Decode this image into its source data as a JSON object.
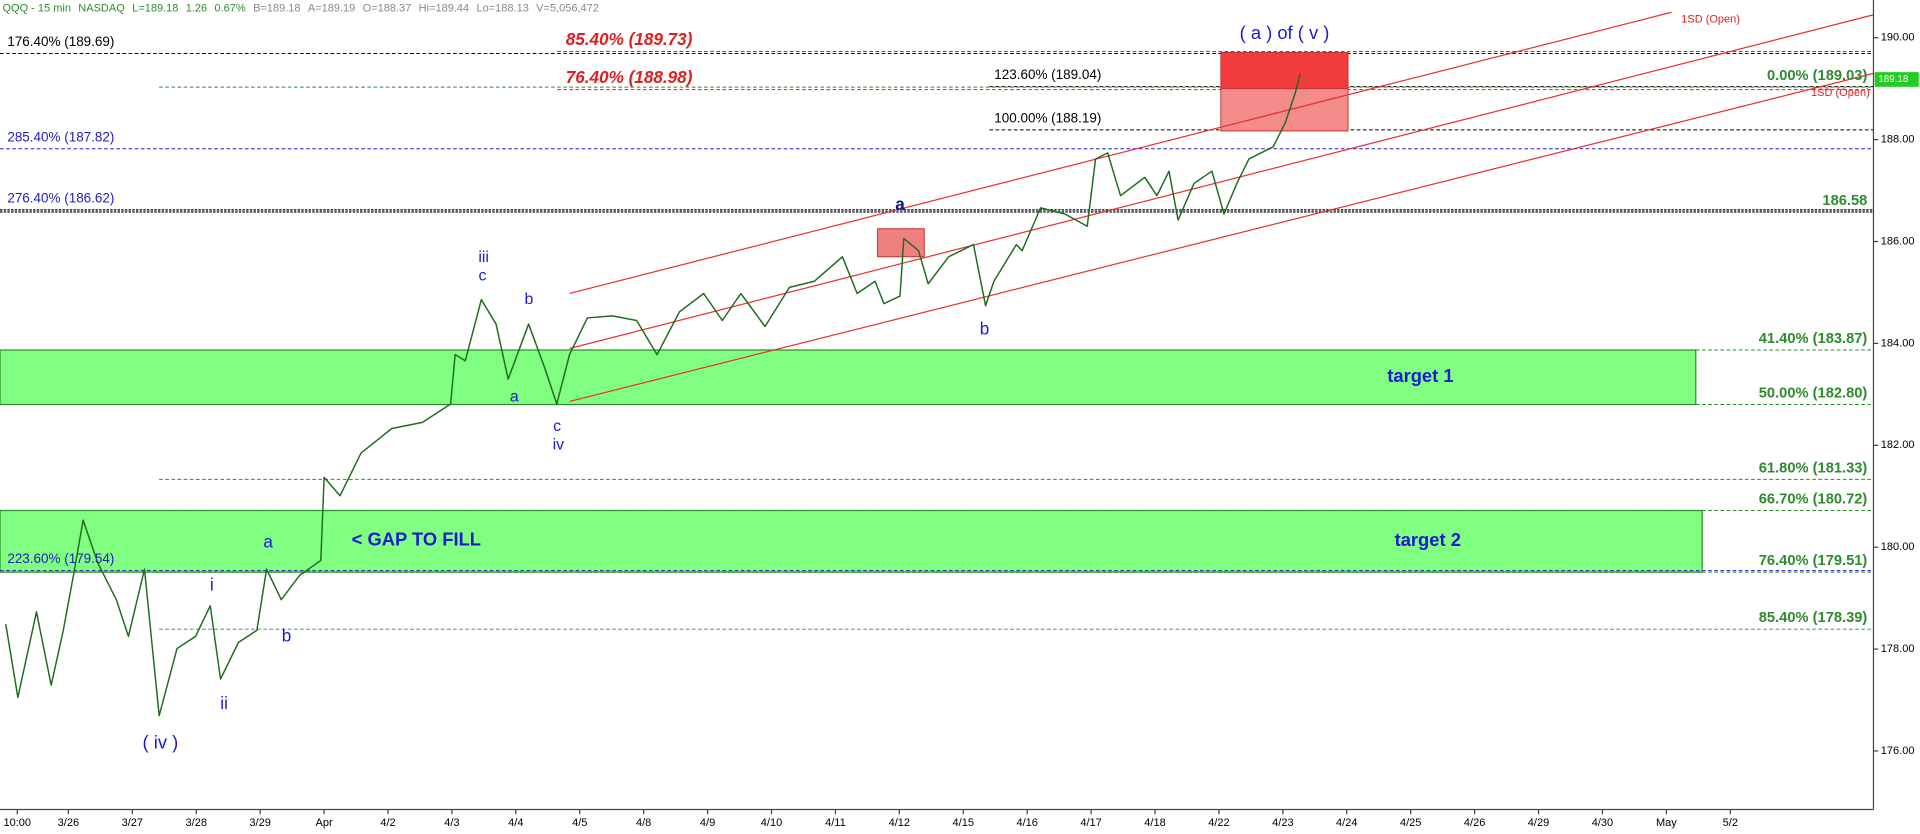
{
  "chart_data": {
    "type": "line",
    "header": [
      "QQQ - 15 min",
      "NASDAQ",
      "L=189.18",
      "1.26",
      "0.67%",
      "B=189.18",
      "A=189.19",
      "O=188.37",
      "Hi=189.44",
      "Lo=188.13",
      "V=5,056,472"
    ],
    "color": "#1f6b1f",
    "x": [
      0.02,
      0.21,
      0.5,
      0.73,
      0.92,
      1.08,
      1.23,
      1.46,
      1.75,
      1.94,
      2.19,
      2.42,
      2.7,
      2.99,
      3.22,
      3.38,
      3.66,
      3.95,
      4.1,
      4.33,
      4.62,
      4.95,
      5.0,
      5.25,
      5.58,
      6.06,
      6.54,
      6.98,
      7.05,
      7.21,
      7.46,
      7.69,
      7.88,
      8.2,
      8.45,
      8.64,
      8.84,
      9.12,
      9.51,
      9.89,
      10.21,
      10.56,
      10.94,
      11.23,
      11.52,
      11.9,
      12.28,
      12.67,
      13.11,
      13.34,
      13.62,
      13.76,
      14.01,
      14.07,
      14.3,
      14.45,
      14.77,
      15.16,
      15.35,
      15.48,
      15.83,
      15.92,
      16.21,
      16.59,
      16.94,
      17.07,
      17.26,
      17.46,
      17.84,
      18.03,
      18.22,
      18.36,
      18.61,
      18.89,
      19.08,
      19.28,
      19.47,
      19.85,
      20.04,
      20.2,
      20.27
    ],
    "values": [
      178.49,
      177.05,
      178.73,
      177.29,
      178.37,
      179.45,
      180.53,
      179.69,
      178.97,
      178.25,
      179.57,
      176.69,
      178.01,
      178.25,
      178.85,
      177.41,
      178.13,
      178.37,
      179.57,
      178.97,
      179.45,
      179.74,
      181.37,
      181.01,
      181.85,
      182.33,
      182.45,
      182.81,
      183.78,
      183.66,
      184.86,
      184.38,
      183.3,
      184.38,
      183.53,
      182.81,
      183.78,
      184.5,
      184.54,
      184.45,
      183.78,
      184.62,
      184.98,
      184.45,
      184.98,
      184.33,
      185.1,
      185.22,
      185.7,
      184.98,
      185.22,
      184.78,
      184.93,
      186.06,
      185.82,
      185.17,
      185.7,
      185.94,
      184.74,
      185.22,
      185.94,
      185.82,
      186.66,
      186.54,
      186.3,
      187.62,
      187.74,
      186.9,
      187.26,
      186.9,
      187.38,
      186.42,
      187.14,
      187.38,
      186.54,
      187.14,
      187.62,
      187.86,
      188.34,
      188.94,
      189.3
    ],
    "xlim": [
      -0.07,
      29.24
    ],
    "ylim": [
      174.85,
      190.74
    ],
    "xticks": [
      {
        "value": 0.2,
        "label": "10:00"
      },
      {
        "value": 1,
        "label": "3/26"
      },
      {
        "value": 2,
        "label": "3/27"
      },
      {
        "value": 3,
        "label": "3/28"
      },
      {
        "value": 4,
        "label": "3/29"
      },
      {
        "value": 5,
        "label": "Apr"
      },
      {
        "value": 6,
        "label": "4/2"
      },
      {
        "value": 7,
        "label": "4/3"
      },
      {
        "value": 8,
        "label": "4/4"
      },
      {
        "value": 9,
        "label": "4/5"
      },
      {
        "value": 10,
        "label": "4/8"
      },
      {
        "value": 11,
        "label": "4/9"
      },
      {
        "value": 12,
        "label": "4/10"
      },
      {
        "value": 13,
        "label": "4/11"
      },
      {
        "value": 14,
        "label": "4/12"
      },
      {
        "value": 15,
        "label": "4/15"
      },
      {
        "value": 16,
        "label": "4/16"
      },
      {
        "value": 17,
        "label": "4/17"
      },
      {
        "value": 18,
        "label": "4/18"
      },
      {
        "value": 19,
        "label": "4/22"
      },
      {
        "value": 20,
        "label": "4/23"
      },
      {
        "value": 21,
        "label": "4/24"
      },
      {
        "value": 22,
        "label": "4/25"
      },
      {
        "value": 23,
        "label": "4/26"
      },
      {
        "value": 24,
        "label": "4/29"
      },
      {
        "value": 25,
        "label": "4/30"
      },
      {
        "value": 26,
        "label": "May"
      },
      {
        "value": 27,
        "label": "5/2"
      }
    ],
    "yticks": [
      {
        "value": 176,
        "label": "176.00"
      },
      {
        "value": 178,
        "label": "178.00"
      },
      {
        "value": 180,
        "label": "180.00"
      },
      {
        "value": 182,
        "label": "182.00"
      },
      {
        "value": 184,
        "label": "184.00"
      },
      {
        "value": 186,
        "label": "186.00"
      },
      {
        "value": 188,
        "label": "188.00"
      },
      {
        "value": 190,
        "label": "190.00"
      }
    ],
    "last_price": 189.18,
    "last_price_color": "#22cc22",
    "levels": [
      {
        "label": "176.40% (189.69)",
        "value": 189.69,
        "color": "#000000"
      },
      {
        "label": "85.40% (189.73)",
        "value": 189.73,
        "color": "#e02020"
      },
      {
        "label": "76.40% (188.98)",
        "value": 188.98,
        "color": "#e02020"
      },
      {
        "label": "123.60% (189.04)",
        "value": 189.04,
        "color": "#000000"
      },
      {
        "label": "0.00% (189.03)",
        "value": 189.03,
        "color": "#2e8b2e"
      },
      {
        "label": "100.00% (188.19)",
        "value": 188.19,
        "color": "#000000"
      },
      {
        "label": "285.40% (187.82)",
        "value": 187.82,
        "color": "#2020c0"
      },
      {
        "label": "276.40% (186.62)",
        "value": 186.62,
        "color": "#2020c0"
      },
      {
        "label": "186.58",
        "value": 186.58,
        "color": "#2e8b2e"
      },
      {
        "label": "41.40% (183.87)",
        "value": 183.87,
        "color": "#2e8b2e"
      },
      {
        "label": "50.00% (182.80)",
        "value": 182.8,
        "color": "#2e8b2e"
      },
      {
        "label": "61.80% (181.33)",
        "value": 181.33,
        "color": "#2e8b2e"
      },
      {
        "label": "66.70% (180.72)",
        "value": 180.72,
        "color": "#2e8b2e"
      },
      {
        "label": "76.40% (179.51)",
        "value": 179.51,
        "color": "#2e8b2e"
      },
      {
        "label": "85.40% (178.39)",
        "value": 178.39,
        "color": "#2e8b2e"
      },
      {
        "label": "223.60% (179.54)",
        "value": 179.54,
        "color": "#2020c0"
      }
    ],
    "zones": [
      {
        "label": "target 1",
        "top": 183.87,
        "bottom": 182.8,
        "x_end": 26.46,
        "color": "#80ff80"
      },
      {
        "label": "target 2",
        "top": 180.72,
        "bottom": 179.51,
        "x_end": 26.56,
        "color": "#80ff80"
      }
    ],
    "boxes": [
      {
        "x": [
          13.66,
          14.39
        ],
        "y": [
          186.25,
          185.7
        ],
        "color": "#f08080"
      },
      {
        "x": [
          19.03,
          21.02
        ],
        "y": [
          189.71,
          189.0
        ],
        "color": "#f03c3c"
      },
      {
        "x": [
          19.03,
          21.02
        ],
        "y": [
          189.0,
          188.17
        ],
        "color": "#f58c8c"
      }
    ],
    "channels": [
      {
        "x": [
          8.84,
          26.08
        ],
        "y": [
          184.98,
          190.5
        ],
        "color": "#e83030"
      },
      {
        "x": [
          8.84,
          29.24
        ],
        "y": [
          183.9,
          190.45
        ],
        "color": "#e83030"
      },
      {
        "x": [
          8.84,
          29.24
        ],
        "y": [
          182.86,
          189.3
        ],
        "color": "#e83030"
      }
    ],
    "annotations": [
      {
        "text": "( iv )",
        "color": "#1a1ad0"
      },
      {
        "text": "i",
        "color": "#1a1ad0"
      },
      {
        "text": "ii",
        "color": "#1a1ad0"
      },
      {
        "text": "a",
        "color": "#1a1ad0"
      },
      {
        "text": "b",
        "color": "#1a1ad0"
      },
      {
        "text": "< GAP TO FILL",
        "color": "#1a1ad0"
      },
      {
        "text": "iii",
        "color": "#1a1ad0"
      },
      {
        "text": "c",
        "color": "#1a1ad0"
      },
      {
        "text": "b",
        "color": "#1a1ad0"
      },
      {
        "text": "a",
        "color": "#1a1ad0"
      },
      {
        "text": "c",
        "color": "#1a1ad0"
      },
      {
        "text": "iv",
        "color": "#1a1ad0"
      },
      {
        "text": "a",
        "color": "#141480"
      },
      {
        "text": "b",
        "color": "#1a1ad0"
      },
      {
        "text": "( a ) of ( v )",
        "color": "#1a1ad0"
      },
      {
        "text": "1SD (Open)",
        "color": "#e02020"
      },
      {
        "text": "1SD (Open)",
        "color": "#e02020"
      }
    ]
  }
}
